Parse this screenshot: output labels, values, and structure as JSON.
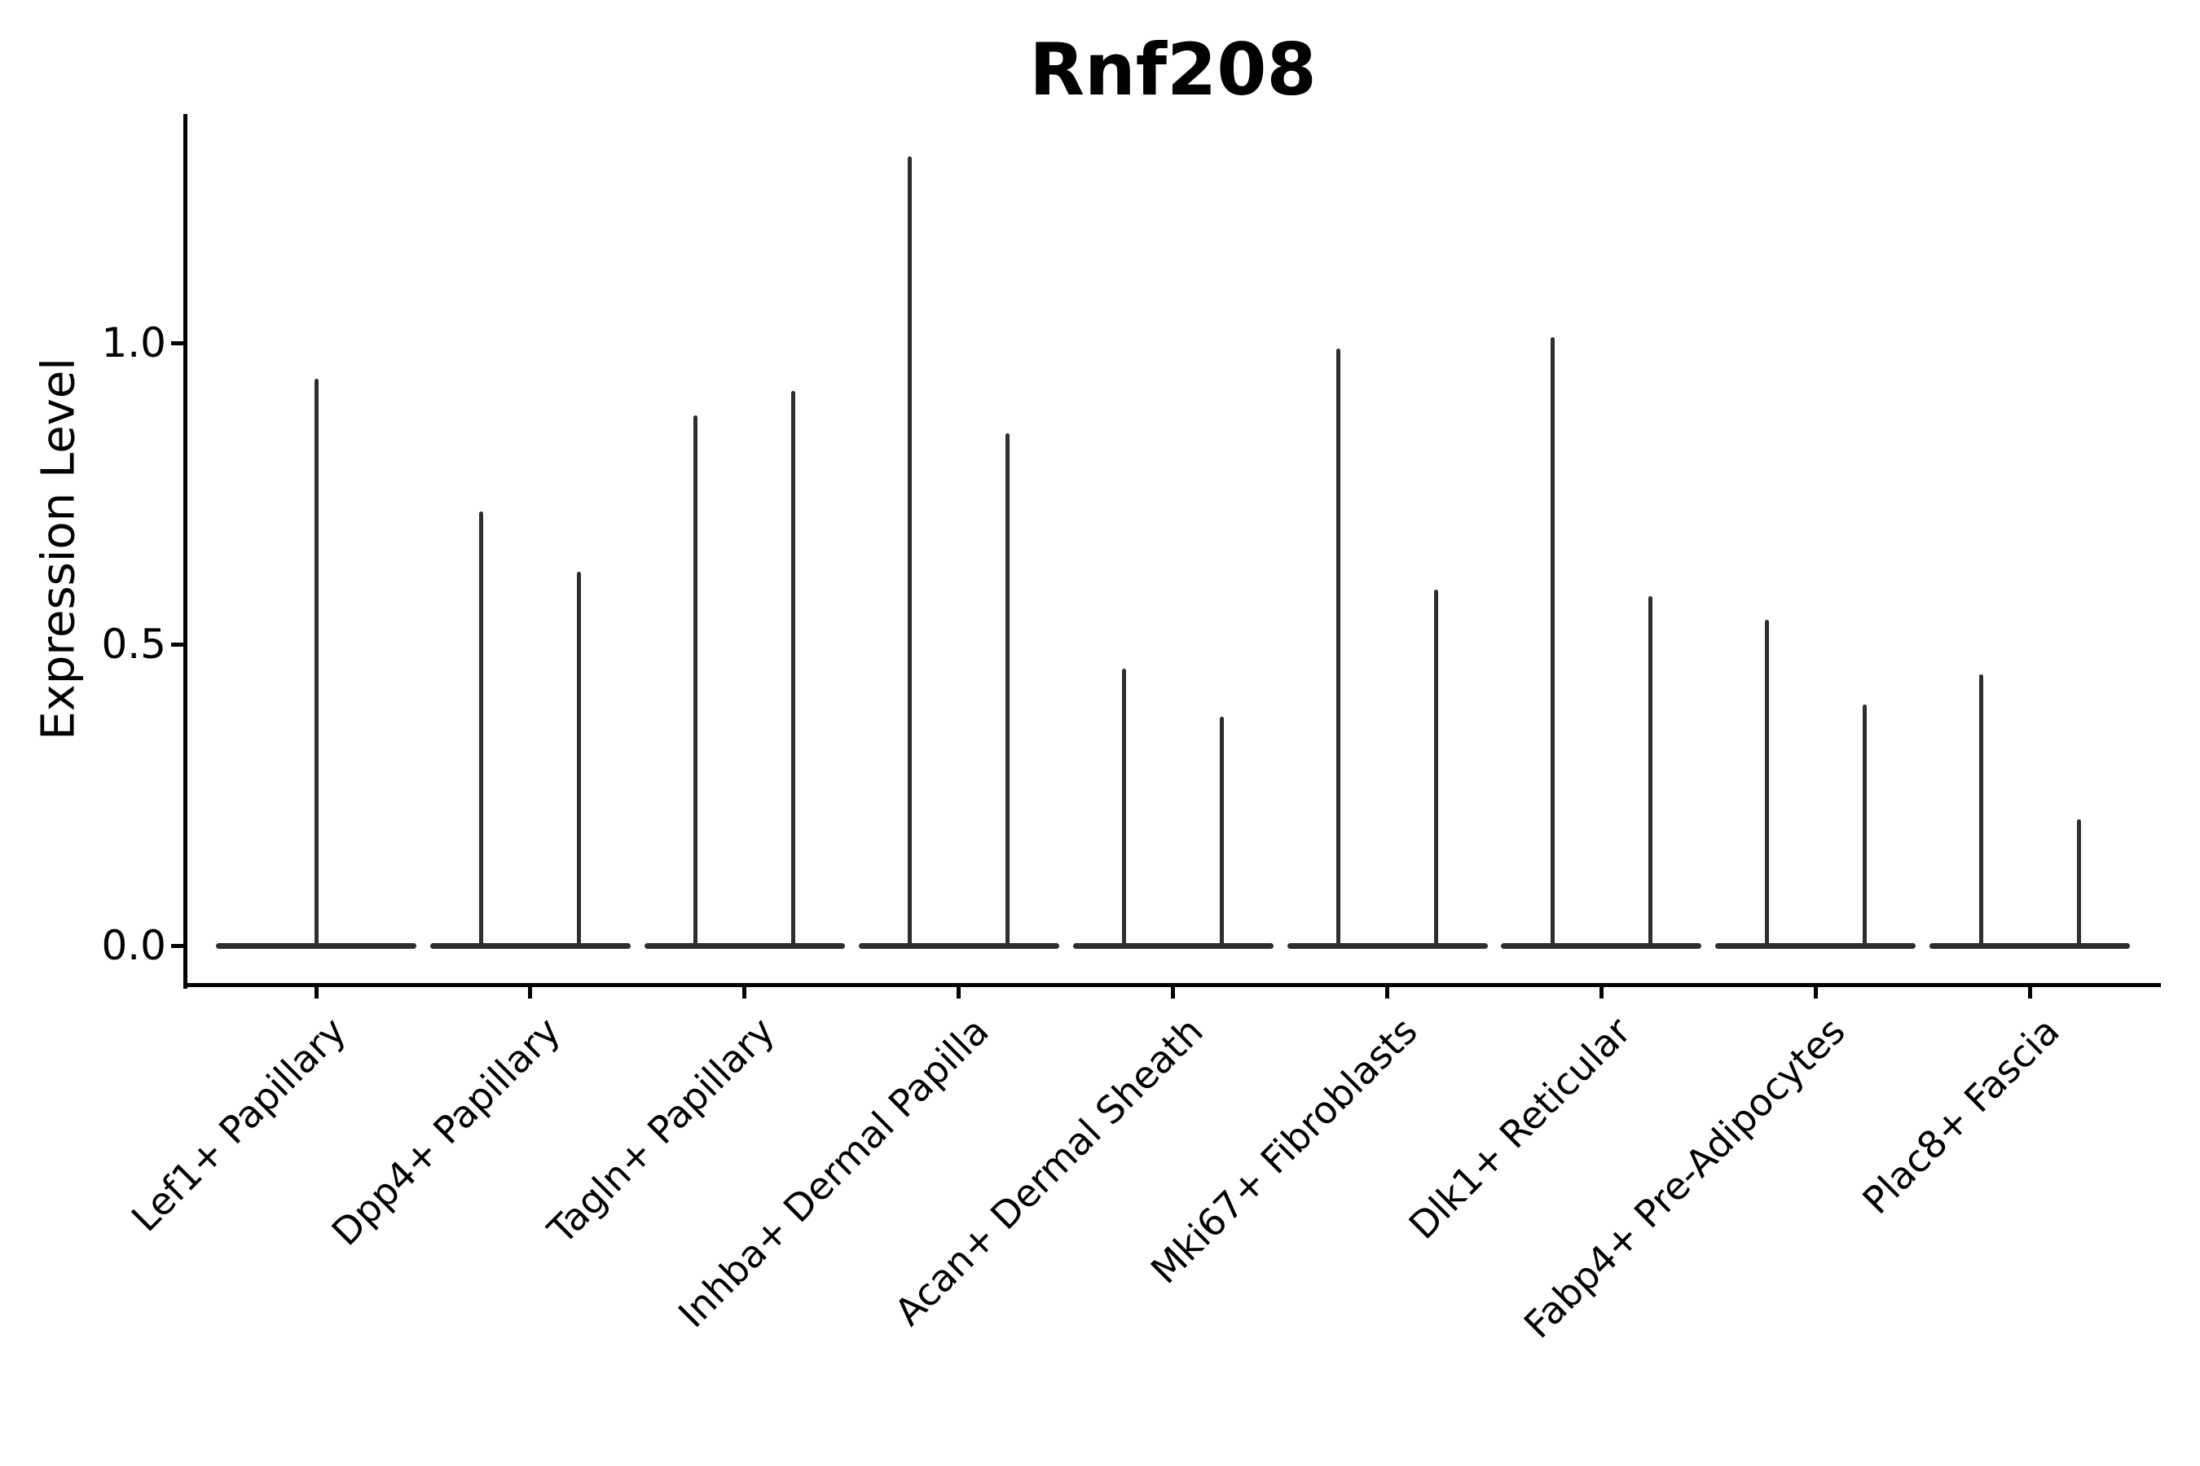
{
  "chart_data": {
    "type": "violin",
    "title": "Rnf208",
    "ylabel": "Expression Level",
    "xlabel": "",
    "yticks": [
      0.0,
      0.5,
      1.0
    ],
    "yticklabels": [
      "0.0",
      "0.5",
      "1.0"
    ],
    "ylim": [
      -0.07,
      1.38
    ],
    "grid": false,
    "legend": "none",
    "background_color": "#ffffff",
    "axis_color": "#000000",
    "violin_color": "#2e2e2e",
    "note": "Single-cell expression violin plot. Each violin is collapsed to a flat base at 0 (most cells have zero expression) with a thin vertical spike reaching the maximum expression value. The first category shows one centered spike; all other categories show two side-by-side spikes sharing one flat base.",
    "categories": [
      {
        "label": "Lef1+ Papillary",
        "violin_max_expression": [
          0.94
        ]
      },
      {
        "label": "Dpp4+ Papillary",
        "violin_max_expression": [
          0.72,
          0.62
        ]
      },
      {
        "label": "Tagln+ Papillary",
        "violin_max_expression": [
          0.88,
          0.92
        ]
      },
      {
        "label": "Inhba+ Dermal Papilla",
        "violin_max_expression": [
          1.31,
          0.85
        ]
      },
      {
        "label": "Acan+ Dermal Sheath",
        "violin_max_expression": [
          0.46,
          0.38
        ]
      },
      {
        "label": "Mki67+ Fibroblasts",
        "violin_max_expression": [
          0.99,
          0.59
        ]
      },
      {
        "label": "Dlk1+ Reticular",
        "violin_max_expression": [
          1.01,
          0.58
        ]
      },
      {
        "label": "Fabp4+ Pre-Adipocytes",
        "violin_max_expression": [
          0.54,
          0.4
        ]
      },
      {
        "label": "Plac8+ Fascia",
        "violin_max_expression": [
          0.45,
          0.21
        ]
      }
    ]
  }
}
